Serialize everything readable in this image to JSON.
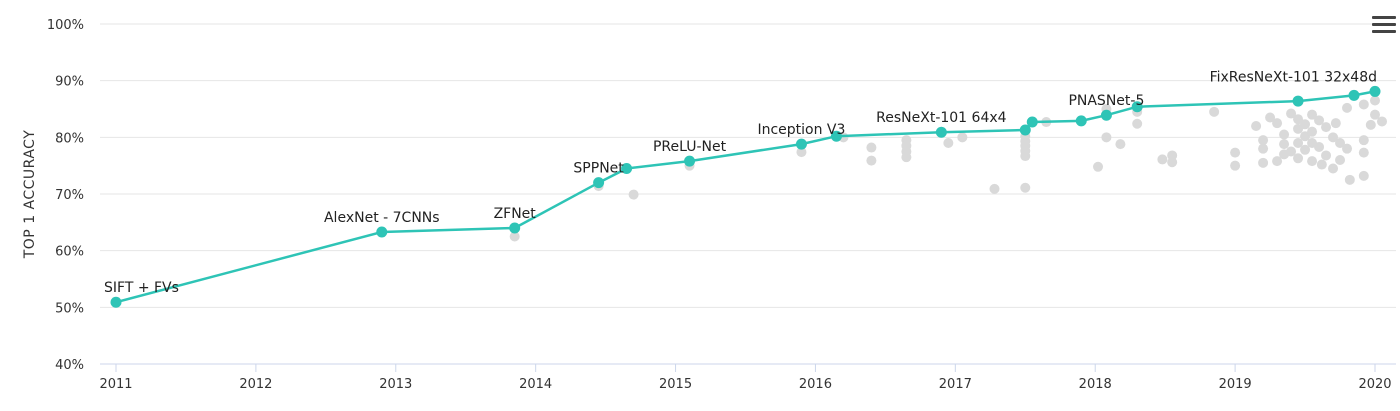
{
  "chart_data": {
    "type": "scatter",
    "ylabel": "TOP 1 ACCURACY",
    "xlabel": "",
    "title": "",
    "xlim": [
      2011.0,
      2020.1
    ],
    "ylim": [
      40,
      100
    ],
    "x_ticks": [
      "2011",
      "2012",
      "2013",
      "2014",
      "2015",
      "2016",
      "2017",
      "2018",
      "2019",
      "2020"
    ],
    "y_ticks": [
      "40%",
      "50%",
      "60%",
      "70%",
      "80%",
      "90%",
      "100%"
    ],
    "grid": true,
    "legend": "none",
    "colors": {
      "sota": "#2ec4b6",
      "others": "#d9d9d9"
    },
    "series": [
      {
        "points": [
          {
            "x": 2011.0,
            "y": 50.9,
            "label": "SIFT + FVs"
          },
          {
            "x": 2012.9,
            "y": 63.3,
            "label": "AlexNet - 7CNNs"
          },
          {
            "x": 2013.85,
            "y": 64.0,
            "label": "ZFNet"
          },
          {
            "x": 2014.45,
            "y": 72.0,
            "label": "SPPNet"
          },
          {
            "x": 2014.65,
            "y": 74.5,
            "label": ""
          },
          {
            "x": 2015.1,
            "y": 75.8,
            "label": "PReLU-Net"
          },
          {
            "x": 2015.9,
            "y": 78.8,
            "label": "Inception V3"
          },
          {
            "x": 2016.15,
            "y": 80.2,
            "label": ""
          },
          {
            "x": 2016.9,
            "y": 80.9,
            "label": "ResNeXt-101 64x4"
          },
          {
            "x": 2017.5,
            "y": 81.3,
            "label": ""
          },
          {
            "x": 2017.55,
            "y": 82.7,
            "label": ""
          },
          {
            "x": 2017.9,
            "y": 82.9,
            "label": ""
          },
          {
            "x": 2018.08,
            "y": 83.9,
            "label": "PNASNet-5"
          },
          {
            "x": 2018.3,
            "y": 85.4,
            "label": ""
          },
          {
            "x": 2019.45,
            "y": 86.4,
            "label": ""
          },
          {
            "x": 2019.85,
            "y": 87.4,
            "label": ""
          },
          {
            "x": 2020.0,
            "y": 88.1,
            "label": "FixResNeXt-101 32x48d"
          }
        ]
      },
      {
        "points": [
          {
            "x": 2013.85,
            "y": 62.5
          },
          {
            "x": 2014.45,
            "y": 71.4
          },
          {
            "x": 2014.7,
            "y": 69.9
          },
          {
            "x": 2015.1,
            "y": 75.0
          },
          {
            "x": 2015.9,
            "y": 77.4
          },
          {
            "x": 2016.2,
            "y": 80.0
          },
          {
            "x": 2016.4,
            "y": 78.2
          },
          {
            "x": 2016.4,
            "y": 75.9
          },
          {
            "x": 2016.65,
            "y": 79.5
          },
          {
            "x": 2016.65,
            "y": 78.5
          },
          {
            "x": 2016.65,
            "y": 77.5
          },
          {
            "x": 2016.65,
            "y": 76.5
          },
          {
            "x": 2016.95,
            "y": 79.0
          },
          {
            "x": 2017.05,
            "y": 80.0
          },
          {
            "x": 2017.28,
            "y": 70.9
          },
          {
            "x": 2017.5,
            "y": 71.1
          },
          {
            "x": 2017.5,
            "y": 76.7
          },
          {
            "x": 2017.5,
            "y": 77.6
          },
          {
            "x": 2017.5,
            "y": 78.5
          },
          {
            "x": 2017.5,
            "y": 79.3
          },
          {
            "x": 2017.5,
            "y": 80.2
          },
          {
            "x": 2017.65,
            "y": 82.7
          },
          {
            "x": 2018.02,
            "y": 74.8
          },
          {
            "x": 2018.08,
            "y": 80.0
          },
          {
            "x": 2018.08,
            "y": 85.0
          },
          {
            "x": 2018.18,
            "y": 78.8
          },
          {
            "x": 2018.3,
            "y": 84.5
          },
          {
            "x": 2018.3,
            "y": 82.4
          },
          {
            "x": 2018.48,
            "y": 76.1
          },
          {
            "x": 2018.55,
            "y": 76.8
          },
          {
            "x": 2018.55,
            "y": 75.6
          },
          {
            "x": 2018.85,
            "y": 84.5
          },
          {
            "x": 2019.0,
            "y": 77.3
          },
          {
            "x": 2019.0,
            "y": 75.0
          },
          {
            "x": 2019.15,
            "y": 82.0
          },
          {
            "x": 2019.2,
            "y": 79.5
          },
          {
            "x": 2019.2,
            "y": 78.0
          },
          {
            "x": 2019.2,
            "y": 75.5
          },
          {
            "x": 2019.3,
            "y": 82.5
          },
          {
            "x": 2019.35,
            "y": 80.5
          },
          {
            "x": 2019.35,
            "y": 78.8
          },
          {
            "x": 2019.35,
            "y": 77.0
          },
          {
            "x": 2019.4,
            "y": 84.2
          },
          {
            "x": 2019.45,
            "y": 83.2
          },
          {
            "x": 2019.45,
            "y": 81.5
          },
          {
            "x": 2019.45,
            "y": 79.0
          },
          {
            "x": 2019.45,
            "y": 76.3
          },
          {
            "x": 2019.5,
            "y": 82.3
          },
          {
            "x": 2019.5,
            "y": 80.2
          },
          {
            "x": 2019.5,
            "y": 77.8
          },
          {
            "x": 2019.55,
            "y": 84.0
          },
          {
            "x": 2019.55,
            "y": 81.0
          },
          {
            "x": 2019.55,
            "y": 79.0
          },
          {
            "x": 2019.55,
            "y": 75.8
          },
          {
            "x": 2019.6,
            "y": 83.0
          },
          {
            "x": 2019.6,
            "y": 78.3
          },
          {
            "x": 2019.65,
            "y": 81.8
          },
          {
            "x": 2019.65,
            "y": 76.8
          },
          {
            "x": 2019.7,
            "y": 80.0
          },
          {
            "x": 2019.7,
            "y": 74.5
          },
          {
            "x": 2019.72,
            "y": 82.5
          },
          {
            "x": 2019.75,
            "y": 79.0
          },
          {
            "x": 2019.75,
            "y": 76.0
          },
          {
            "x": 2019.8,
            "y": 85.2
          },
          {
            "x": 2019.8,
            "y": 78.0
          },
          {
            "x": 2019.82,
            "y": 72.5
          },
          {
            "x": 2019.92,
            "y": 85.8
          },
          {
            "x": 2019.92,
            "y": 79.5
          },
          {
            "x": 2019.92,
            "y": 77.3
          },
          {
            "x": 2019.92,
            "y": 73.2
          },
          {
            "x": 2019.97,
            "y": 82.2
          },
          {
            "x": 2020.0,
            "y": 86.5
          },
          {
            "x": 2020.0,
            "y": 84.0
          },
          {
            "x": 2020.05,
            "y": 82.8
          },
          {
            "x": 2019.25,
            "y": 83.5
          },
          {
            "x": 2019.4,
            "y": 77.5
          },
          {
            "x": 2019.62,
            "y": 75.2
          },
          {
            "x": 2019.3,
            "y": 75.8
          }
        ]
      }
    ]
  },
  "menu": {
    "icon": "hamburger-menu-icon"
  }
}
